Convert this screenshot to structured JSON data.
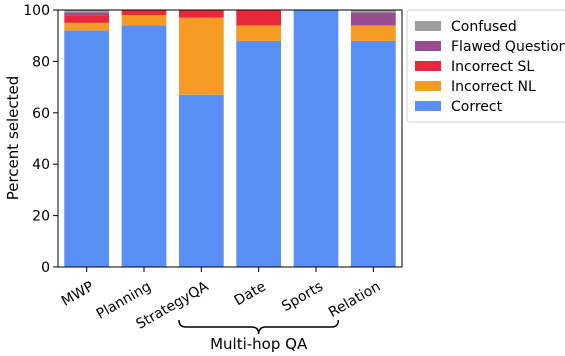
{
  "chart_data": {
    "type": "bar",
    "stacked": true,
    "title": "",
    "xlabel": "",
    "ylabel": "Percent selected",
    "ylim": [
      0,
      100
    ],
    "yticks": [
      0,
      20,
      40,
      60,
      80,
      100
    ],
    "grid": false,
    "legend_position": "outside-top-right",
    "categories": [
      "MWP",
      "Planning",
      "StrategyQA",
      "Date",
      "Sports",
      "Relation"
    ],
    "series": [
      {
        "name": "Correct",
        "color": "#5a8ff5",
        "values": [
          92,
          94,
          67,
          88,
          100,
          88
        ]
      },
      {
        "name": "Incorrect NL",
        "color": "#f59a23",
        "values": [
          3,
          4,
          30,
          6,
          0,
          6
        ]
      },
      {
        "name": "Incorrect SL",
        "color": "#e8273a",
        "values": [
          3,
          2,
          3,
          6,
          0,
          0
        ]
      },
      {
        "name": "Flawed Question",
        "color": "#974d8e",
        "values": [
          1,
          0,
          0,
          0,
          0,
          5
        ]
      },
      {
        "name": "Confused",
        "color": "#9e9e9e",
        "values": [
          1,
          0,
          0,
          0,
          0,
          1
        ]
      }
    ],
    "legend_order": [
      "Confused",
      "Flawed Question",
      "Incorrect SL",
      "Incorrect NL",
      "Correct"
    ],
    "annotations": [
      {
        "text": "Multi-hop QA",
        "spans_categories": [
          "StrategyQA",
          "Date",
          "Sports"
        ],
        "kind": "brace"
      }
    ]
  }
}
